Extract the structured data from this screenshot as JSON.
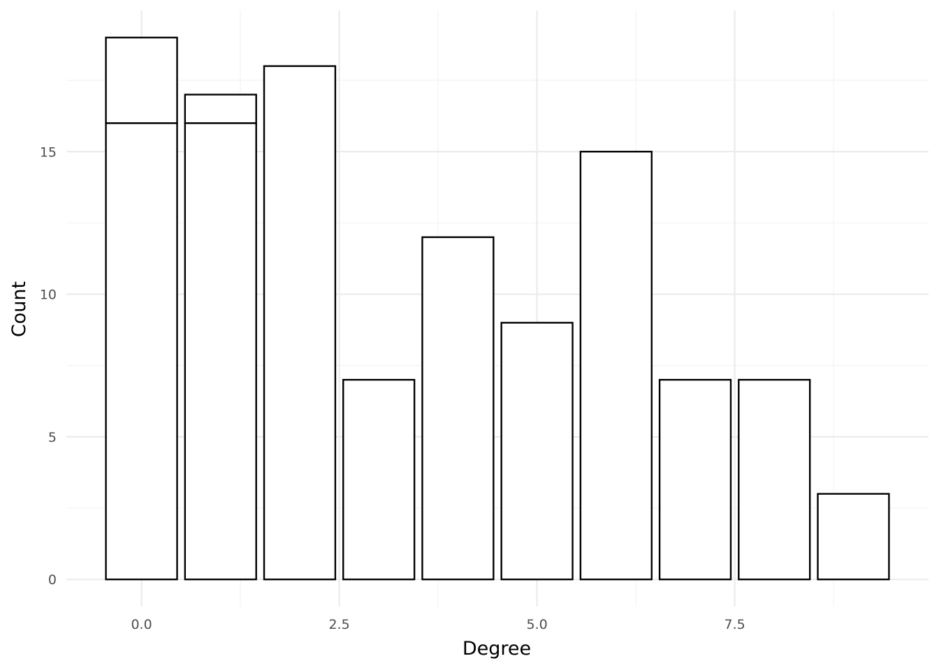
{
  "chart_data": {
    "type": "bar",
    "title": "",
    "xlabel": "Degree",
    "ylabel": "Count",
    "bar_width": 0.9,
    "xlim": [
      -0.95,
      9.95
    ],
    "ylim": [
      -0.95,
      19.95
    ],
    "x_ticks": [
      0,
      2.5,
      5,
      7.5
    ],
    "x_tick_labels": [
      "0.0",
      "2.5",
      "5.0",
      "7.5"
    ],
    "y_ticks": [
      0,
      5,
      10,
      15
    ],
    "y_tick_labels": [
      "0",
      "5",
      "10",
      "15"
    ],
    "grid": true,
    "fill": "#ffffff",
    "outline": "#000000",
    "bars": [
      {
        "x": 0,
        "values": [
          16,
          3
        ]
      },
      {
        "x": 1,
        "values": [
          16,
          1
        ]
      },
      {
        "x": 2,
        "values": [
          18
        ]
      },
      {
        "x": 3,
        "values": [
          7
        ]
      },
      {
        "x": 4,
        "values": [
          12
        ]
      },
      {
        "x": 5,
        "values": [
          9
        ]
      },
      {
        "x": 6,
        "values": [
          15
        ]
      },
      {
        "x": 7,
        "values": [
          7
        ]
      },
      {
        "x": 8,
        "values": [
          7
        ]
      },
      {
        "x": 9,
        "values": [
          3
        ]
      }
    ]
  }
}
